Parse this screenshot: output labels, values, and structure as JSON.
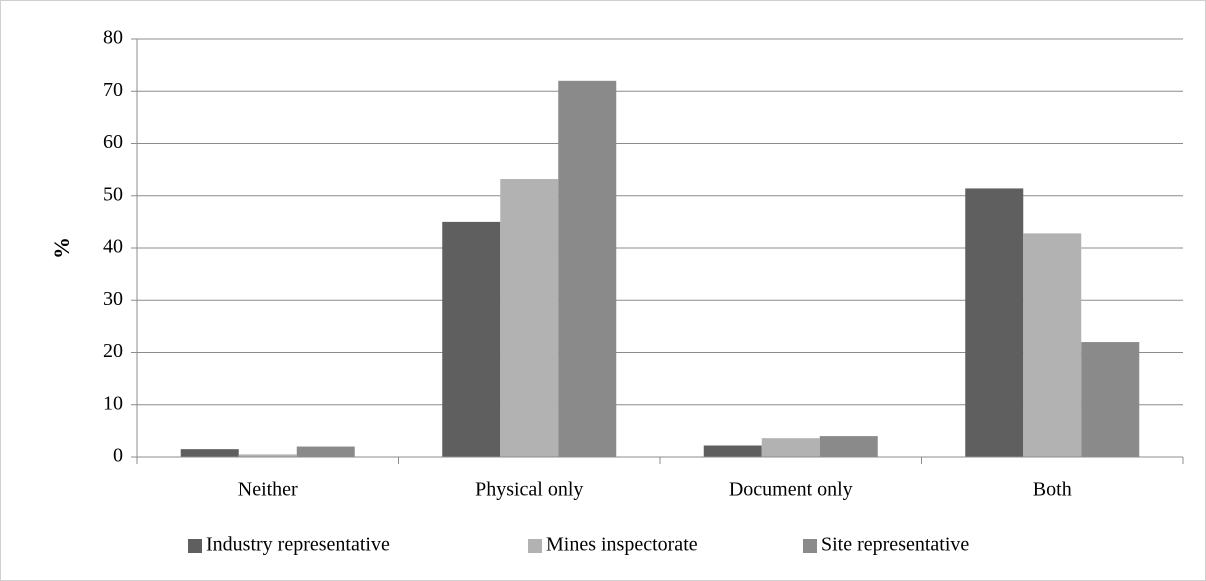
{
  "chart_data": {
    "type": "bar",
    "y_label": "%",
    "categories": [
      "Neither",
      "Physical only",
      "Document only",
      "Both"
    ],
    "series": [
      {
        "name": "Industry representative",
        "color": "#5f5f5f",
        "values": [
          1.5,
          45,
          2.2,
          51.4
        ]
      },
      {
        "name": "Mines inspectorate",
        "color": "#b2b2b2",
        "values": [
          0.5,
          53.2,
          3.6,
          42.8
        ]
      },
      {
        "name": "Site representative",
        "color": "#8a8a8a",
        "values": [
          2,
          72,
          4,
          22
        ]
      }
    ],
    "ylim": [
      0,
      80
    ],
    "yticks": [
      0,
      10,
      20,
      30,
      40,
      50,
      60,
      70,
      80
    ],
    "grid": true,
    "legend": "bottom"
  }
}
